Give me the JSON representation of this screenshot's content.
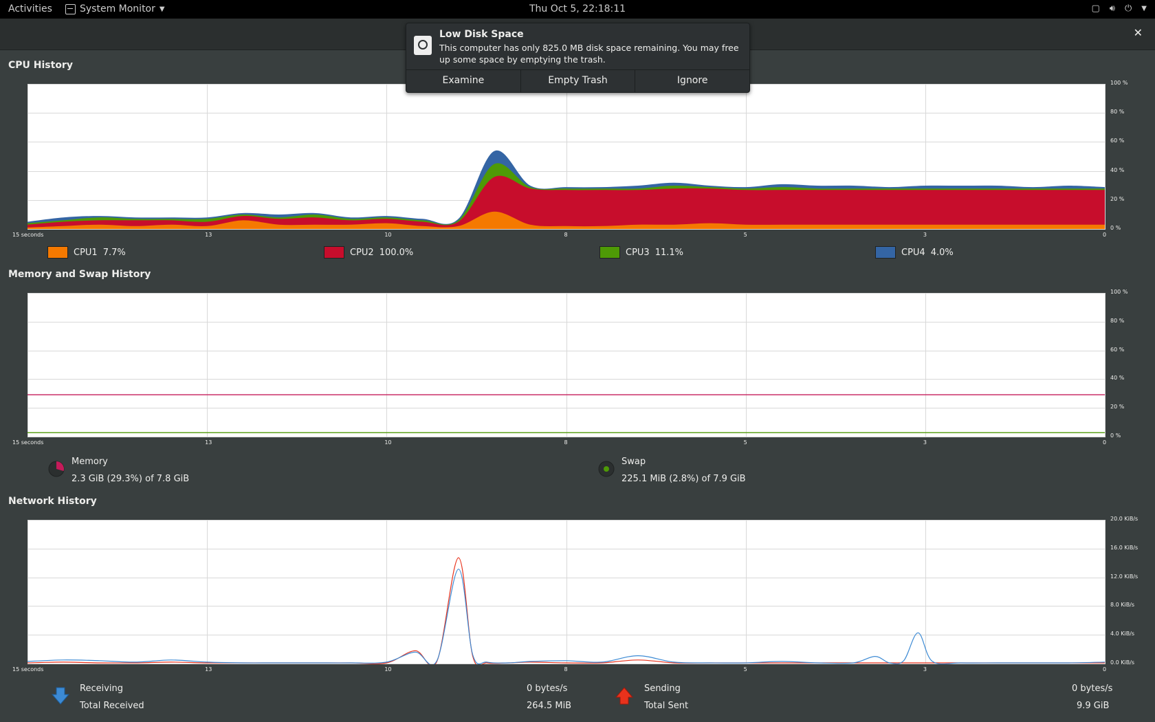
{
  "topbar": {
    "activities": "Activities",
    "app_name": "System Monitor",
    "clock": "Thu Oct  5, 22:18:11"
  },
  "notification": {
    "title": "Low Disk Space",
    "body": "This computer has only 825.0 MB disk space remaining.  You may free up some space by emptying the trash.",
    "actions": [
      "Examine",
      "Empty Trash",
      "Ignore"
    ]
  },
  "sections": {
    "cpu": "CPU History",
    "memory": "Memory and Swap History",
    "network": "Network History"
  },
  "axis": {
    "x_ticks": [
      "15 seconds",
      "13",
      "10",
      "8",
      "5",
      "3",
      "0"
    ],
    "pct_ticks": [
      "100 %",
      "80 %",
      "60 %",
      "40 %",
      "20 %",
      "0 %"
    ],
    "net_ticks": [
      "20.0 KiB/s",
      "16.0 KiB/s",
      "12.0 KiB/s",
      "8.0 KiB/s",
      "4.0 KiB/s",
      "0.0 KiB/s"
    ]
  },
  "cpu_legend": [
    {
      "label": "CPU1",
      "value": "7.7%",
      "color": "#f57900"
    },
    {
      "label": "CPU2",
      "value": "100.0%",
      "color": "#c70d2c"
    },
    {
      "label": "CPU3",
      "value": "11.1%",
      "color": "#4e9a06"
    },
    {
      "label": "CPU4",
      "value": "4.0%",
      "color": "#3465a4"
    }
  ],
  "memory": {
    "label": "Memory",
    "value": "2.3 GiB (29.3%) of 7.8 GiB",
    "color": "#c51b5a"
  },
  "swap": {
    "label": "Swap",
    "value": "225.1 MiB (2.8%) of 7.9 GiB",
    "color": "#4e9a06"
  },
  "network": {
    "receiving_label": "Receiving",
    "receiving_rate": "0 bytes/s",
    "total_received_label": "Total Received",
    "total_received": "264.5 MiB",
    "sending_label": "Sending",
    "sending_rate": "0 bytes/s",
    "total_sent_label": "Total Sent",
    "total_sent": "9.9 GiB",
    "receive_color": "#3c8ad4",
    "send_color": "#e8321c"
  },
  "chart_data": [
    {
      "type": "area",
      "title": "CPU History",
      "x": [
        15,
        14.5,
        14,
        13.5,
        13,
        12.5,
        12,
        11.5,
        11,
        10.5,
        10,
        9.5,
        9,
        8.5,
        8,
        7.5,
        7,
        6.5,
        6,
        5.5,
        5,
        4.5,
        4,
        3.5,
        3,
        2.5,
        2,
        1.5,
        1,
        0.5,
        0
      ],
      "xlabel": "seconds",
      "ylim": [
        0,
        100
      ],
      "stacked": true,
      "series": [
        {
          "name": "CPU1",
          "values": [
            1,
            2,
            3,
            2,
            3,
            2,
            6,
            3,
            3,
            3,
            4,
            2,
            2,
            12,
            3,
            2,
            2,
            3,
            3,
            4,
            3,
            3,
            3,
            3,
            3,
            3,
            3,
            3,
            3,
            3,
            3
          ]
        },
        {
          "name": "CPU2",
          "values": [
            2,
            3,
            3,
            4,
            3,
            3,
            3,
            4,
            5,
            3,
            3,
            3,
            3,
            24,
            25,
            25,
            25,
            24,
            25,
            24,
            24,
            24,
            24,
            24,
            24,
            24,
            24,
            24,
            24,
            24,
            24
          ]
        },
        {
          "name": "CPU3",
          "values": [
            1,
            1,
            2,
            1,
            1,
            2,
            1,
            1,
            2,
            1,
            1,
            1,
            1,
            9,
            1,
            1,
            1,
            1,
            2,
            1,
            1,
            2,
            1,
            1,
            1,
            1,
            1,
            1,
            1,
            1,
            1
          ]
        },
        {
          "name": "CPU4",
          "values": [
            1,
            2,
            1,
            1,
            1,
            1,
            1,
            2,
            1,
            1,
            1,
            1,
            1,
            9,
            1,
            1,
            1,
            2,
            2,
            1,
            1,
            2,
            2,
            2,
            1,
            2,
            2,
            2,
            1,
            2,
            1
          ]
        }
      ]
    },
    {
      "type": "line",
      "title": "Memory and Swap History",
      "x": [
        15,
        0
      ],
      "xlabel": "seconds",
      "ylim": [
        0,
        100
      ],
      "series": [
        {
          "name": "Memory",
          "values": [
            29.3,
            29.3
          ]
        },
        {
          "name": "Swap",
          "values": [
            2.8,
            2.8
          ]
        }
      ]
    },
    {
      "type": "line",
      "title": "Network History",
      "x": [
        15,
        14.5,
        14,
        13.5,
        13,
        12.5,
        12,
        11.5,
        11,
        10.5,
        10,
        9.6,
        9.3,
        9.0,
        8.8,
        8.6,
        8.3,
        8,
        7.5,
        7,
        6.5,
        6,
        5.5,
        5,
        4.5,
        4,
        3.5,
        3.2,
        3,
        2.8,
        2.6,
        2.4,
        2,
        1.5,
        1,
        0.5,
        0
      ],
      "xlabel": "seconds",
      "ylim": [
        0,
        20
      ],
      "series": [
        {
          "name": "Receiving",
          "values": [
            0.3,
            0.5,
            0.4,
            0.2,
            0.5,
            0.2,
            0.1,
            0.1,
            0.1,
            0.1,
            0.2,
            1.6,
            0.4,
            13.2,
            1.2,
            0.2,
            0.1,
            0.3,
            0.4,
            0.2,
            1.1,
            0.2,
            0.1,
            0.1,
            0.3,
            0.1,
            0.1,
            1.0,
            0.1,
            0.4,
            4.3,
            0.3,
            0.1,
            0.1,
            0.1,
            0.1,
            0.2
          ]
        },
        {
          "name": "Sending",
          "values": [
            0.1,
            0.2,
            0.1,
            0.1,
            0.2,
            0.1,
            0.1,
            0.1,
            0.1,
            0.1,
            0.1,
            1.8,
            0.3,
            14.8,
            1.0,
            0.1,
            0.1,
            0.2,
            0.1,
            0.1,
            0.5,
            0.1,
            0.1,
            0.1,
            0.1,
            0.1,
            0.1,
            0.1,
            0.1,
            0.1,
            0.1,
            0.1,
            0.1,
            0.1,
            0.1,
            0.1,
            0.1
          ]
        }
      ]
    }
  ]
}
